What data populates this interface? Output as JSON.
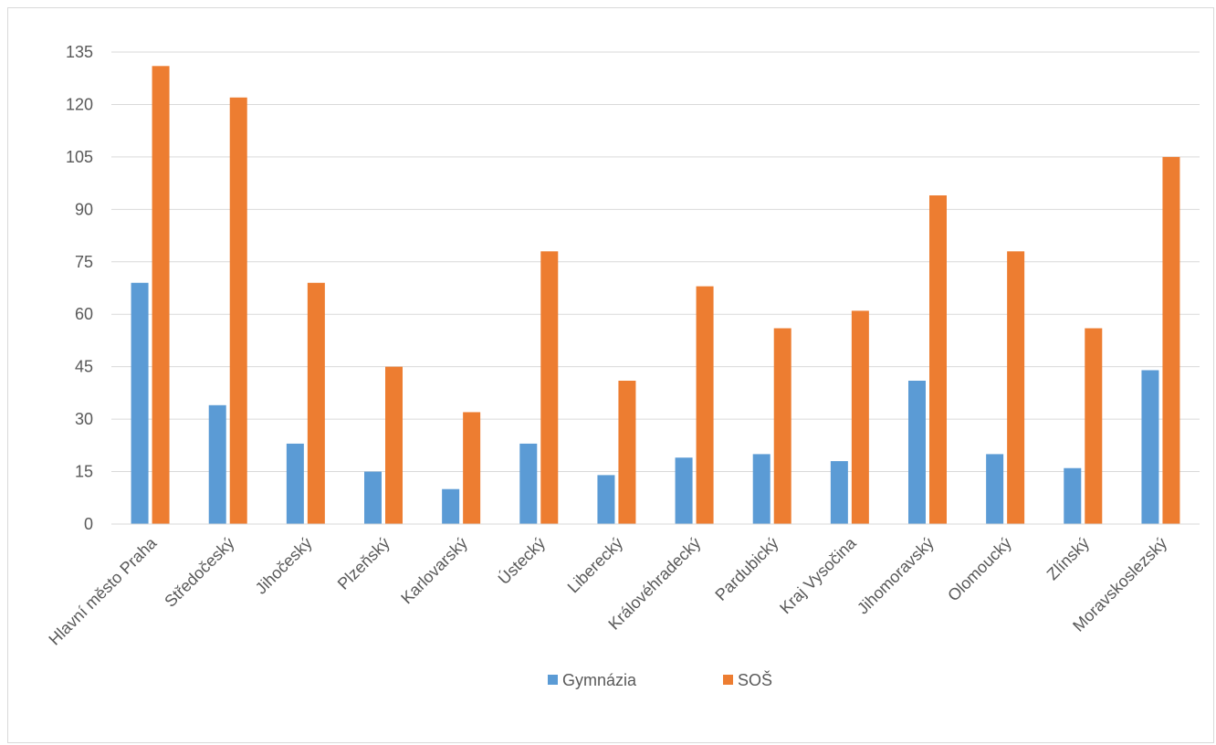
{
  "chart_data": {
    "type": "bar",
    "categories": [
      "Hlavní město Praha",
      "Středočeský",
      "Jihočeský",
      "Plzeňský",
      "Karlovarský",
      "Ústecký",
      "Liberecký",
      "Královéhradecký",
      "Pardubický",
      "Kraj Vysočina",
      "Jihomoravský",
      "Olomoucký",
      "Zlínský",
      "Moravskoslezský"
    ],
    "series": [
      {
        "name": "Gymnázia",
        "color": "#5b9bd5",
        "values": [
          69,
          34,
          23,
          15,
          10,
          23,
          14,
          19,
          20,
          18,
          41,
          20,
          16,
          44
        ]
      },
      {
        "name": "SOŠ",
        "color": "#ed7d31",
        "values": [
          131,
          122,
          69,
          45,
          32,
          78,
          41,
          68,
          56,
          61,
          94,
          78,
          56,
          105
        ]
      }
    ],
    "yticks": [
      "0",
      "15",
      "30",
      "45",
      "60",
      "75",
      "90",
      "105",
      "120",
      "135"
    ],
    "ylim": [
      0,
      135
    ],
    "grid": true,
    "legend_position": "bottom"
  }
}
